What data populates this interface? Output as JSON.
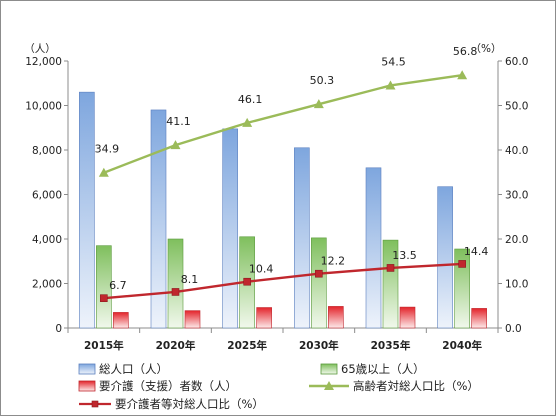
{
  "chart_data": {
    "type": "bar",
    "title": "",
    "categories": [
      "2015年",
      "2020年",
      "2025年",
      "2030年",
      "2035年",
      "2040年"
    ],
    "y_left": {
      "unit_label": "（人）",
      "ylim": [
        0,
        12000
      ],
      "ticks": [
        "0",
        "2,000",
        "4,000",
        "6,000",
        "8,000",
        "10,000",
        "12,000"
      ]
    },
    "y_right": {
      "unit_label": "（%）",
      "ylim": [
        0,
        60
      ],
      "ticks": [
        "0.0",
        "10.0",
        "20.0",
        "30.0",
        "40.0",
        "50.0",
        "60.0"
      ]
    },
    "grid": false,
    "legend_position": "bottom",
    "series": [
      {
        "name": "総人口（人）",
        "type": "bar",
        "axis": "left",
        "color": "#7ea6de",
        "values": [
          10600,
          9800,
          8950,
          8100,
          7200,
          6350
        ]
      },
      {
        "name": "65歳以上（人）",
        "type": "bar",
        "axis": "left",
        "color": "#86c667",
        "values": [
          3700,
          4000,
          4100,
          4050,
          3950,
          3550
        ]
      },
      {
        "name": "要介護（支援）者数（人）",
        "type": "bar",
        "axis": "left",
        "color": "#e3242b",
        "values": [
          700,
          780,
          920,
          970,
          940,
          880
        ]
      },
      {
        "name": "高齢者対総人口比（%）",
        "type": "line",
        "axis": "right",
        "color": "#9bbb59",
        "marker": "triangle",
        "values": [
          34.9,
          41.1,
          46.1,
          50.3,
          54.5,
          56.8
        ],
        "labels": [
          "34.9",
          "41.1",
          "46.1",
          "50.3",
          "54.5",
          "56.8"
        ]
      },
      {
        "name": "要介護者等対総人口比（%）",
        "type": "line",
        "axis": "right",
        "color": "#c0272d",
        "marker": "square",
        "values": [
          6.7,
          8.1,
          10.4,
          12.2,
          13.5,
          14.4
        ],
        "labels": [
          "6.7",
          "8.1",
          "10.4",
          "12.2",
          "13.5",
          "14.4"
        ]
      }
    ]
  }
}
